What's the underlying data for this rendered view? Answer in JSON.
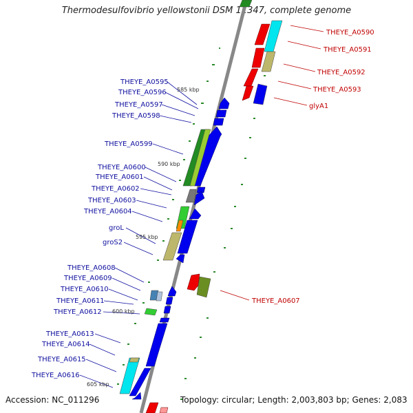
{
  "title": "Thermodesulfovibrio yellowstonii DSM 11347, complete genome",
  "footer": {
    "accession": "Accession: NC_011296",
    "summary": "Topology: circular; Length: 2,003,803 bp; Genes: 2,083"
  },
  "colors": {
    "forward_cds": "#0000ee",
    "reverse_cds": "#ee0000",
    "backbone": "#888888",
    "tick": "#228822",
    "left_label": "#1010a0",
    "right_label": "#c00000"
  },
  "scale_labels": [
    "585 kbp",
    "590 kbp",
    "595 kbp",
    "600 kbp",
    "605 kbp"
  ],
  "left_genes": [
    "THEYE_A0595",
    "THEYE_A0596",
    "THEYE_A0597",
    "THEYE_A0598",
    "THEYE_A0599",
    "THEYE_A0600",
    "THEYE_A0601",
    "THEYE_A0602",
    "THEYE_A0603",
    "THEYE_A0604",
    "groL",
    "groS2",
    "THEYE_A0608",
    "THEYE_A0609",
    "THEYE_A0610",
    "THEYE_A0611",
    "THEYE_A0612",
    "THEYE_A0613",
    "THEYE_A0614",
    "THEYE_A0615",
    "THEYE_A0616"
  ],
  "right_genes": [
    "THEYE_A0590",
    "THEYE_A0591",
    "THEYE_A0592",
    "THEYE_A0593",
    "glyA1",
    "THEYE_A0607"
  ]
}
